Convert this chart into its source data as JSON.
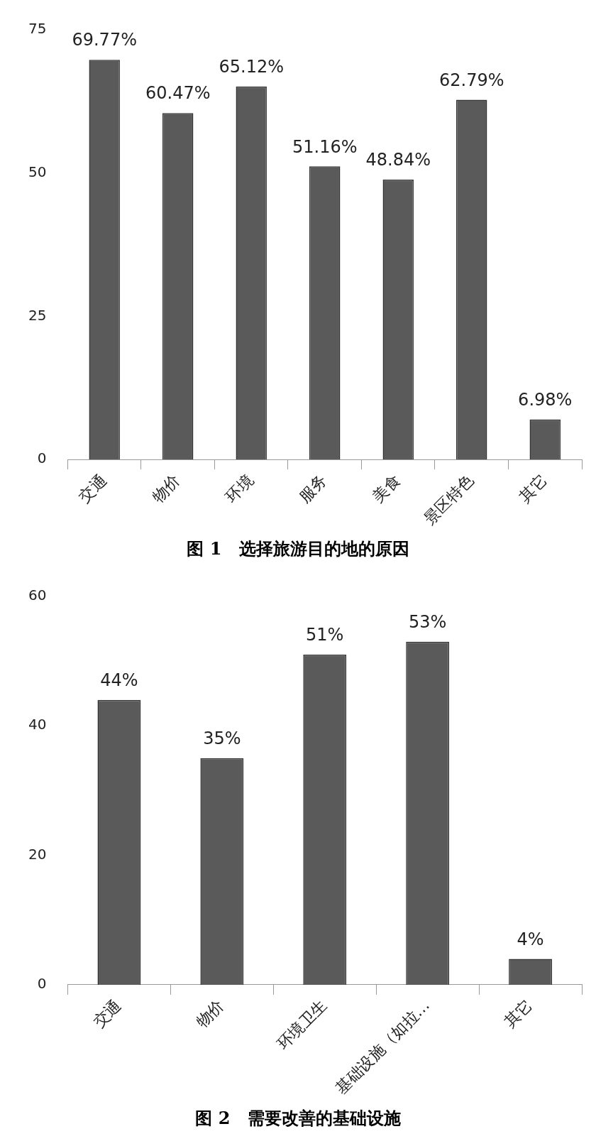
{
  "chart_data": [
    {
      "type": "bar",
      "title": "图 1　选择旅游目的地的原因",
      "categories": [
        "交通",
        "物价",
        "环境",
        "服务",
        "美食",
        "景区特色",
        "其它"
      ],
      "values": [
        69.77,
        60.47,
        65.12,
        51.16,
        48.84,
        62.79,
        6.98
      ],
      "value_labels": [
        "69.77%",
        "60.47%",
        "65.12%",
        "51.16%",
        "48.84%",
        "62.79%",
        "6.98%"
      ],
      "color": "#5a5a5a",
      "ylim": [
        0,
        75
      ],
      "yticks": [
        0,
        25,
        50,
        75
      ],
      "grid": false,
      "legend": false
    },
    {
      "type": "bar",
      "title": "图 2　需要改善的基础设施",
      "categories": [
        "交通",
        "物价",
        "环境卫生",
        "基础设施（如拉…",
        "其它"
      ],
      "values": [
        44,
        35,
        51,
        53,
        4
      ],
      "value_labels": [
        "44%",
        "35%",
        "51%",
        "53%",
        "4%"
      ],
      "color": "#5a5a5a",
      "ylim": [
        0,
        60
      ],
      "yticks": [
        0,
        20,
        40,
        60
      ],
      "grid": false,
      "legend": false
    }
  ]
}
